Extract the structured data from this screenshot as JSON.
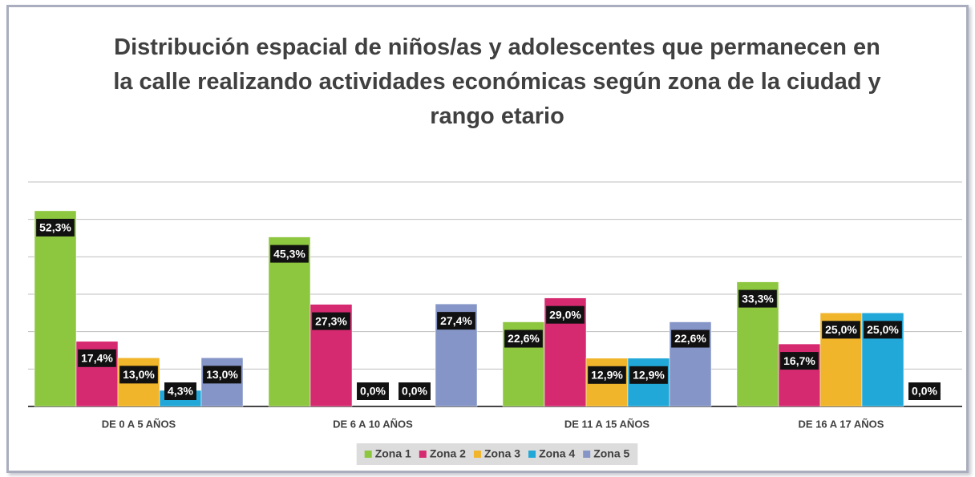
{
  "chart_data": {
    "type": "bar",
    "title": "Distribución espacial de niños/as y adolescentes que permanecen en la calle realizando actividades económicas según zona de la ciudad y rango etario",
    "categories": [
      "DE 0 A 5 AÑOS",
      "DE 6 A 10 AÑOS",
      "DE 11 A 15 AÑOS",
      "DE 16 A 17 AÑOS"
    ],
    "series": [
      {
        "name": "Zona 1",
        "color": "#8dc63f",
        "values": [
          52.3,
          45.3,
          22.6,
          33.3
        ],
        "value_labels": [
          "52,3%",
          "45,3%",
          "22,6%",
          "33,3%"
        ]
      },
      {
        "name": "Zona 2",
        "color": "#d62a70",
        "values": [
          17.4,
          27.3,
          29.0,
          16.7
        ],
        "value_labels": [
          "17,4%",
          "27,3%",
          "29,0%",
          "16,7%"
        ]
      },
      {
        "name": "Zona 3",
        "color": "#f1b52c",
        "values": [
          13.0,
          0.0,
          12.9,
          25.0
        ],
        "value_labels": [
          "13,0%",
          "0,0%",
          "12,9%",
          "25,0%"
        ]
      },
      {
        "name": "Zona 4",
        "color": "#22a8d8",
        "values": [
          4.3,
          0.0,
          12.9,
          25.0
        ],
        "value_labels": [
          "4,3%",
          "0,0%",
          "12,9%",
          "25,0%"
        ]
      },
      {
        "name": "Zona 5",
        "color": "#8595c7",
        "values": [
          13.0,
          27.4,
          22.6,
          0.0
        ],
        "value_labels": [
          "13,0%",
          "27,4%",
          "22,6%",
          "0,0%"
        ]
      }
    ],
    "ylim": [
      0,
      60
    ],
    "yticks": [
      0,
      10,
      20,
      30,
      40,
      50,
      60
    ],
    "grid": true,
    "legend": "bottom"
  }
}
